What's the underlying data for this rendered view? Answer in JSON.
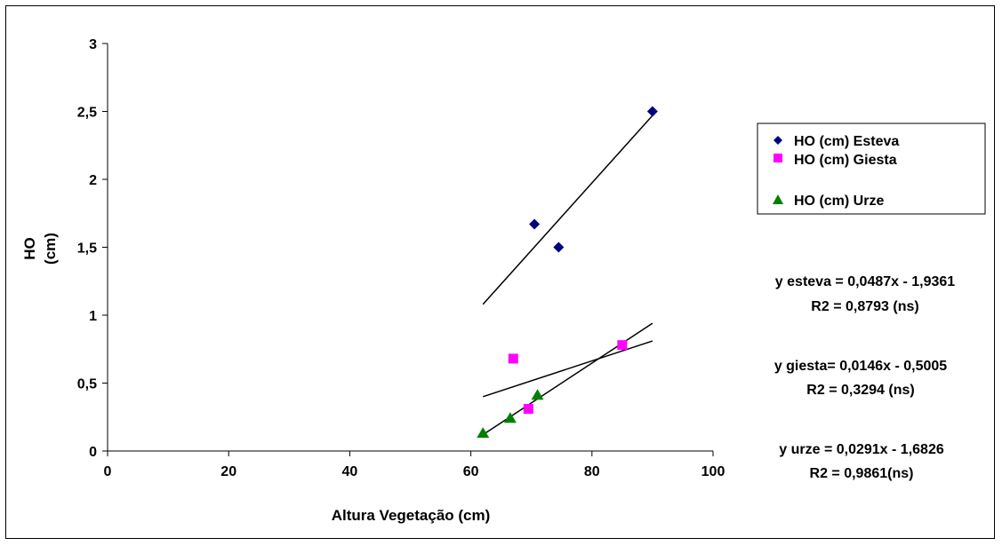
{
  "chart_data": {
    "type": "scatter",
    "xlabel": "Altura Vegetação (cm)",
    "ylabel_lines": [
      "HO",
      "(cm)"
    ],
    "xlim": [
      0,
      100
    ],
    "ylim": [
      0,
      3
    ],
    "x_ticks": [
      0,
      20,
      40,
      60,
      80,
      100
    ],
    "y_ticks": [
      0,
      0.5,
      1,
      1.5,
      2,
      2.5,
      3
    ],
    "x_tick_labels": [
      "0",
      "20",
      "40",
      "60",
      "80",
      "100"
    ],
    "y_tick_labels": [
      "0",
      "0,5",
      "1",
      "1,5",
      "2",
      "2,5",
      "3"
    ],
    "grid": false,
    "legend_position": "right",
    "series": [
      {
        "name": "HO (cm) Esteva",
        "marker": "diamond",
        "color": "#000080",
        "points": [
          [
            70.5,
            1.67
          ],
          [
            74.5,
            1.5
          ],
          [
            90,
            2.5
          ]
        ],
        "trendline": {
          "x": [
            62,
            90
          ],
          "y": [
            1.08,
            2.47
          ]
        }
      },
      {
        "name": "HO (cm) Giesta",
        "marker": "square",
        "color": "#ff00ff",
        "points": [
          [
            67,
            0.68
          ],
          [
            69.5,
            0.31
          ],
          [
            85,
            0.78
          ]
        ],
        "trendline": {
          "x": [
            62,
            90
          ],
          "y": [
            0.4,
            0.81
          ]
        }
      },
      {
        "name": "HO (cm) Urze",
        "marker": "triangle",
        "color": "#008000",
        "points": [
          [
            62,
            0.13
          ],
          [
            66.5,
            0.24
          ],
          [
            71,
            0.41
          ]
        ],
        "trendline": {
          "x": [
            62,
            90
          ],
          "y": [
            0.12,
            0.94
          ]
        }
      }
    ],
    "annotations": [
      {
        "line1": "y esteva = 0,0487x - 1,9361",
        "line2": "R2 = 0,8793 (ns)"
      },
      {
        "line1": "y giesta= 0,0146x - 0,5005",
        "line2": "R2 = 0,3294 (ns)"
      },
      {
        "line1": "y urze = 0,0291x - 1,6826",
        "line2": "R2 = 0,9861(ns)"
      }
    ]
  }
}
